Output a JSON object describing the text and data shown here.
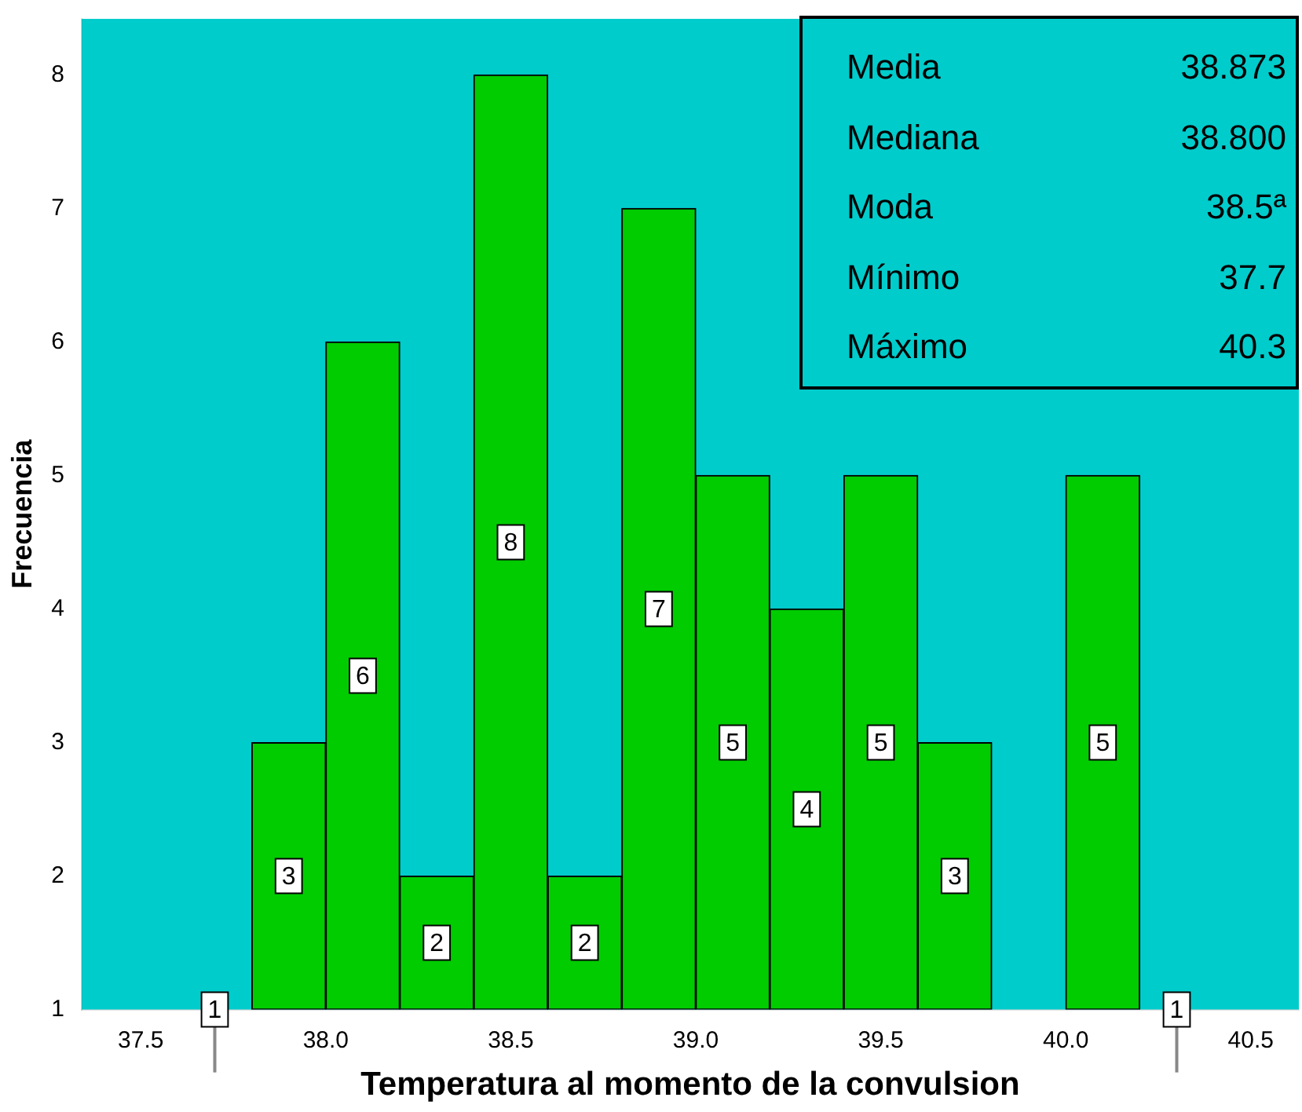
{
  "chart_data": {
    "type": "histogram",
    "xlabel": "Temperatura al momento de la convulsion",
    "ylabel": "Frecuencia",
    "bins": [
      37.6,
      37.8,
      38.0,
      38.2,
      38.4,
      38.6,
      38.8,
      39.0,
      39.2,
      39.4,
      39.6,
      39.8,
      40.0,
      40.2,
      40.4
    ],
    "values": [
      1,
      3,
      6,
      2,
      8,
      2,
      7,
      5,
      4,
      5,
      3,
      null,
      5,
      1
    ],
    "value_labels": [
      "1",
      "3",
      "6",
      "2",
      "8",
      "2",
      "7",
      "5",
      "4",
      "5",
      "3",
      null,
      "5",
      "1"
    ],
    "color": "#00cc00",
    "xlim": [
      37.34,
      40.63
    ],
    "xticks": [
      {
        "value": 37.5,
        "label": "37.5"
      },
      {
        "value": 38.0,
        "label": "38.0"
      },
      {
        "value": 38.5,
        "label": "38.5"
      },
      {
        "value": 39.0,
        "label": "39.0"
      },
      {
        "value": 39.5,
        "label": "39.5"
      },
      {
        "value": 40.0,
        "label": "40.0"
      },
      {
        "value": 40.5,
        "label": "40.5"
      }
    ],
    "ylim": [
      1,
      8.42
    ],
    "yticks": [
      1,
      2,
      3,
      4,
      5,
      6,
      7,
      8
    ],
    "grid": false,
    "legend": false,
    "annotations": [
      "Media",
      "38.873",
      "Mediana",
      "38.800",
      "Moda",
      "38.5ª",
      "Mínimo",
      "37.7",
      "Máximo",
      "40.3"
    ]
  }
}
